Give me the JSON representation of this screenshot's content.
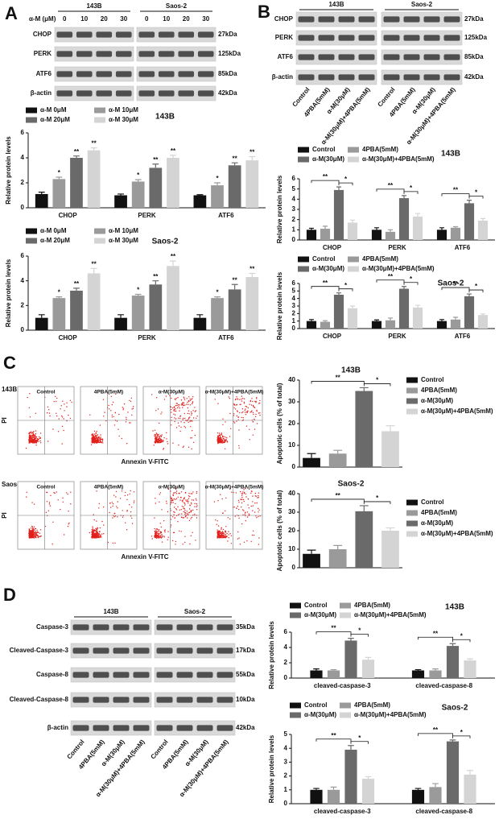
{
  "panel_letters": [
    "A",
    "B",
    "C",
    "D"
  ],
  "blots": [
    {
      "dose_label": "α-M (μM)",
      "groups": [
        "143B",
        "Saos-2"
      ],
      "lanes": [
        "0",
        "10",
        "20",
        "30"
      ],
      "rows": [
        {
          "name": "CHOP",
          "size": "27kDa"
        },
        {
          "name": "PERK",
          "size": "125kDa"
        },
        {
          "name": "ATF6",
          "size": "85kDa"
        },
        {
          "name": "β-actin",
          "size": "42kDa"
        }
      ]
    },
    {
      "groups": [
        "143B",
        "Saos-2"
      ],
      "lanes": [
        "Control",
        "4PBA(5mM)",
        "α-M(30μM)",
        "α-M(30μM)+4PBA(5mM)"
      ],
      "rows": [
        {
          "name": "CHOP",
          "size": "27kDa"
        },
        {
          "name": "PERK",
          "size": "125kDa"
        },
        {
          "name": "ATF6",
          "size": "85kDa"
        },
        {
          "name": "β-actin",
          "size": "42kDa"
        }
      ]
    },
    {
      "groups": [
        "143B",
        "Saos-2"
      ],
      "lanes": [
        "Control",
        "4PBA(5mM)",
        "α-M(30μM)",
        "α-M(30μM)+4PBA(5mM)"
      ],
      "rows": [
        {
          "name": "Caspase-3",
          "size": "35kDa"
        },
        {
          "name": "Cleaved-Caspase-3",
          "size": "17kDa"
        },
        {
          "name": "Caspase-8",
          "size": "55kDa"
        },
        {
          "name": "Cleaved-Caspase-8",
          "size": "10kDa"
        },
        {
          "name": "β-actin",
          "size": "42kDa"
        }
      ]
    }
  ],
  "flow": {
    "rows": [
      "143B",
      "Saos-2"
    ],
    "columns": [
      "Control",
      "4PBA(5mM)",
      "α-M(30μM)",
      "α-M(30μM)+4PBA(5mM)"
    ],
    "y_label": "PI",
    "x_label": "Annexin V-FITC"
  },
  "chart_data": [
    {
      "type": "bar",
      "title": "143B",
      "y_label": "Relative protein levels",
      "categories": [
        "CHOP",
        "PERK",
        "ATF6"
      ],
      "ylim": [
        0,
        6
      ],
      "yticks": [
        0,
        2,
        4,
        6
      ],
      "legend": "top",
      "series": [
        {
          "name": "α-M 0μM",
          "color": "#111111",
          "values": [
            1.1,
            1.0,
            1.0
          ],
          "errors": [
            0.15,
            0.1,
            0.05
          ],
          "annotations": [
            null,
            null,
            null
          ]
        },
        {
          "name": "α-M 10μM",
          "color": "#9a9a9a",
          "values": [
            2.3,
            2.1,
            1.8
          ],
          "errors": [
            0.15,
            0.15,
            0.2
          ],
          "annotations": [
            "*",
            "*",
            "*"
          ]
        },
        {
          "name": "α-M 20μM",
          "color": "#6a6a6a",
          "values": [
            4.0,
            3.2,
            3.4
          ],
          "errors": [
            0.15,
            0.3,
            0.2
          ],
          "annotations": [
            "**",
            "**",
            "**"
          ]
        },
        {
          "name": "α-M 30μM",
          "color": "#d4d4d4",
          "values": [
            4.6,
            4.0,
            3.8
          ],
          "errors": [
            0.2,
            0.2,
            0.3
          ],
          "annotations": [
            "**",
            "**",
            "**"
          ]
        }
      ]
    },
    {
      "type": "bar",
      "title": "Saos-2",
      "y_label": "Relative protein levels",
      "categories": [
        "CHOP",
        "PERK",
        "ATF6"
      ],
      "ylim": [
        0,
        6
      ],
      "yticks": [
        0,
        2,
        4,
        6
      ],
      "legend": "top",
      "series": [
        {
          "name": "α-M 0μM",
          "color": "#111111",
          "values": [
            1.0,
            1.0,
            1.0
          ],
          "errors": [
            0.25,
            0.25,
            0.25
          ],
          "annotations": [
            null,
            null,
            null
          ]
        },
        {
          "name": "α-M 10μM",
          "color": "#9a9a9a",
          "values": [
            2.6,
            2.8,
            2.6
          ],
          "errors": [
            0.1,
            0.1,
            0.1
          ],
          "annotations": [
            "*",
            "*",
            "*"
          ]
        },
        {
          "name": "α-M 20μM",
          "color": "#6a6a6a",
          "values": [
            3.2,
            3.7,
            3.3
          ],
          "errors": [
            0.2,
            0.3,
            0.4
          ],
          "annotations": [
            "**",
            "**",
            "**"
          ]
        },
        {
          "name": "α-M 30μM",
          "color": "#d4d4d4",
          "values": [
            4.6,
            5.2,
            4.3
          ],
          "errors": [
            0.4,
            0.4,
            0.3
          ],
          "annotations": [
            "**",
            "**",
            "**"
          ]
        }
      ]
    },
    {
      "type": "bar",
      "title": "143B",
      "y_label": "Relative protein levels",
      "categories": [
        "CHOP",
        "PERK",
        "ATF6"
      ],
      "ylim": [
        0,
        6
      ],
      "yticks": [
        0,
        1,
        2,
        3,
        4,
        5,
        6
      ],
      "legend": "top",
      "series": [
        {
          "name": "Control",
          "color": "#111111",
          "values": [
            1.0,
            1.0,
            1.0
          ],
          "errors": [
            0.15,
            0.2,
            0.2
          ]
        },
        {
          "name": "4PBA(5mM)",
          "color": "#9a9a9a",
          "values": [
            1.1,
            0.8,
            1.2
          ],
          "errors": [
            0.25,
            0.2,
            0.1
          ]
        },
        {
          "name": "α-M(30μM)",
          "color": "#6a6a6a",
          "values": [
            4.9,
            4.1,
            3.6
          ],
          "errors": [
            0.3,
            0.25,
            0.3
          ]
        },
        {
          "name": "α-M(30μM)+4PBA(5mM)",
          "color": "#d4d4d4",
          "values": [
            1.7,
            2.3,
            1.9
          ],
          "errors": [
            0.25,
            0.3,
            0.2
          ]
        }
      ],
      "significance": [
        [
          "**",
          "*"
        ],
        [
          "**",
          "*"
        ],
        [
          "**",
          "*"
        ]
      ]
    },
    {
      "type": "bar",
      "title": "Saos-2",
      "y_label": "Relative protein levels",
      "categories": [
        "CHOP",
        "PERK",
        "ATF6"
      ],
      "ylim": [
        0,
        6
      ],
      "yticks": [
        0,
        1,
        2,
        3,
        4,
        5,
        6
      ],
      "legend": "top",
      "series": [
        {
          "name": "Control",
          "color": "#111111",
          "values": [
            1.0,
            1.0,
            1.0
          ],
          "errors": [
            0.2,
            0.15,
            0.2
          ]
        },
        {
          "name": "4PBA(5mM)",
          "color": "#9a9a9a",
          "values": [
            0.9,
            1.1,
            1.2
          ],
          "errors": [
            0.15,
            0.3,
            0.3
          ]
        },
        {
          "name": "α-M(30μM)",
          "color": "#6a6a6a",
          "values": [
            4.5,
            5.3,
            4.3
          ],
          "errors": [
            0.25,
            0.3,
            0.3
          ]
        },
        {
          "name": "α-M(30μM)+4PBA(5mM)",
          "color": "#d4d4d4",
          "values": [
            2.7,
            2.8,
            1.8
          ],
          "errors": [
            0.3,
            0.3,
            0.15
          ]
        }
      ],
      "significance": [
        [
          "**",
          "*"
        ],
        [
          "**",
          "*"
        ],
        [
          "**",
          "*"
        ]
      ]
    },
    {
      "type": "bar",
      "title": "143B",
      "y_label": "Apoptotic cells (% of total)",
      "categories": [
        null
      ],
      "ylim": [
        0,
        40
      ],
      "yticks": [
        0,
        10,
        20,
        30,
        40
      ],
      "legend": "right",
      "series": [
        {
          "name": "Control",
          "color": "#111111",
          "values": [
            4.2
          ],
          "errors": [
            2
          ]
        },
        {
          "name": "4PBA(5mM)",
          "color": "#9a9a9a",
          "values": [
            6.2
          ],
          "errors": [
            1.5
          ]
        },
        {
          "name": "α-M(30μM)",
          "color": "#6a6a6a",
          "values": [
            35
          ],
          "errors": [
            1.5
          ]
        },
        {
          "name": "α-M(30μM)+4PBA(5mM)",
          "color": "#d4d4d4",
          "values": [
            16.5
          ],
          "errors": [
            2.5
          ]
        }
      ],
      "significance": [
        [
          "**",
          "*"
        ]
      ]
    },
    {
      "type": "bar",
      "title": "Saos-2",
      "y_label": "Apoptotic cells (% of total)",
      "categories": [
        null
      ],
      "ylim": [
        0,
        40
      ],
      "yticks": [
        0,
        10,
        20,
        30,
        40
      ],
      "legend": "right",
      "series": [
        {
          "name": "Control",
          "color": "#111111",
          "values": [
            7.5
          ],
          "errors": [
            2
          ]
        },
        {
          "name": "4PBA(5mM)",
          "color": "#9a9a9a",
          "values": [
            10
          ],
          "errors": [
            2
          ]
        },
        {
          "name": "α-M(30μM)",
          "color": "#6a6a6a",
          "values": [
            30.5
          ],
          "errors": [
            3
          ]
        },
        {
          "name": "α-M(30μM)+4PBA(5mM)",
          "color": "#d4d4d4",
          "values": [
            20
          ],
          "errors": [
            1.5
          ]
        }
      ],
      "significance": [
        [
          "**",
          "*"
        ]
      ]
    },
    {
      "type": "bar",
      "title": "143B",
      "y_label": "Relative protein levels",
      "categories": [
        "cleaved-caspase-3",
        "cleaved-caspase-8"
      ],
      "ylim": [
        0,
        6
      ],
      "yticks": [
        0,
        2,
        4,
        6
      ],
      "legend": "top",
      "series": [
        {
          "name": "Control",
          "color": "#111111",
          "values": [
            1.0,
            1.0
          ],
          "errors": [
            0.2,
            0.1
          ]
        },
        {
          "name": "4PBA(5mM)",
          "color": "#9a9a9a",
          "values": [
            1.0,
            1.0
          ],
          "errors": [
            0.1,
            0.2
          ]
        },
        {
          "name": "α-M(30μM)",
          "color": "#6a6a6a",
          "values": [
            4.9,
            4.2
          ],
          "errors": [
            0.3,
            0.3
          ]
        },
        {
          "name": "α-M(30μM)+4PBA(5mM)",
          "color": "#d4d4d4",
          "values": [
            2.4,
            2.3
          ],
          "errors": [
            0.3,
            0.2
          ]
        }
      ],
      "significance": [
        [
          "**",
          "*"
        ],
        [
          "**",
          "*"
        ]
      ]
    },
    {
      "type": "bar",
      "title": "Saos-2",
      "y_label": "Relative protein levels",
      "categories": [
        "cleaved-caspase-3",
        "cleaved-caspase-8"
      ],
      "ylim": [
        0,
        5
      ],
      "yticks": [
        0,
        1,
        2,
        3,
        4,
        5
      ],
      "legend": "top",
      "series": [
        {
          "name": "Control",
          "color": "#111111",
          "values": [
            1.0,
            1.0
          ],
          "errors": [
            0.1,
            0.1
          ]
        },
        {
          "name": "4PBA(5mM)",
          "color": "#9a9a9a",
          "values": [
            1.0,
            1.2
          ],
          "errors": [
            0.2,
            0.25
          ]
        },
        {
          "name": "α-M(30μM)",
          "color": "#6a6a6a",
          "values": [
            3.9,
            4.5
          ],
          "errors": [
            0.3,
            0.1
          ]
        },
        {
          "name": "α-M(30μM)+4PBA(5mM)",
          "color": "#d4d4d4",
          "values": [
            1.8,
            2.1
          ],
          "errors": [
            0.15,
            0.3
          ]
        }
      ],
      "significance": [
        [
          "**",
          "*"
        ],
        [
          "**",
          "*"
        ]
      ]
    }
  ]
}
